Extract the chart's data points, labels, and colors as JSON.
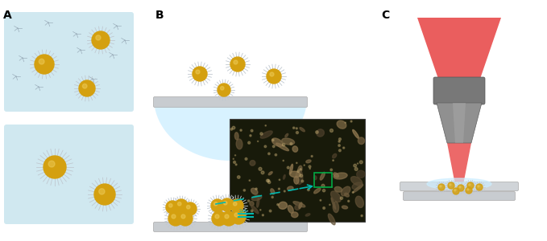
{
  "label_A": "A",
  "label_B": "B",
  "label_C": "C",
  "bg_color": "#ffffff",
  "light_blue": "#b8dde8",
  "light_blue2": "#cceeff",
  "gold_color": "#d4a010",
  "spike_color": "#c0c8d0",
  "substrate_color": "#c8ccd0",
  "laser_red": "#e84848",
  "obj_gray": "#888888",
  "obj_mid": "#707070",
  "obj_cone_gray": "#909090",
  "micro_bg": "#181a0a",
  "teal": "#00b8b0",
  "green_box": "#00aa44",
  "font_size_label": 10
}
